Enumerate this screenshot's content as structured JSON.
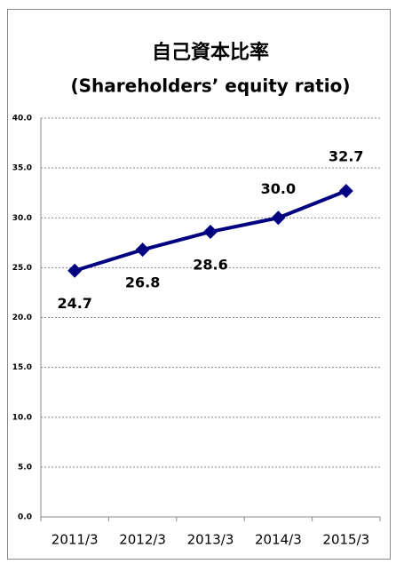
{
  "chart_data": {
    "type": "line",
    "title": "自己資本比率",
    "subtitle": "(Shareholders’ equity ratio)",
    "categories": [
      "2011/3",
      "2012/3",
      "2013/3",
      "2014/3",
      "2015/3"
    ],
    "series": [
      {
        "name": "自己資本比率",
        "color": "#000080",
        "values": [
          24.7,
          26.8,
          28.6,
          30.0,
          32.7
        ],
        "value_labels": [
          "24.7",
          "26.8",
          "28.6",
          "30.0",
          "32.7"
        ]
      }
    ],
    "ylim": [
      0,
      40
    ],
    "yticks": [
      {
        "value": 0,
        "label": "0.0"
      },
      {
        "value": 5,
        "label": "5.0"
      },
      {
        "value": 10,
        "label": "10.0"
      },
      {
        "value": 15,
        "label": "15.0"
      },
      {
        "value": 20,
        "label": "20.0"
      },
      {
        "value": 25,
        "label": "25.0"
      },
      {
        "value": 30,
        "label": "30.0"
      },
      {
        "value": 35,
        "label": "35.0"
      },
      {
        "value": 40,
        "label": "40.0"
      }
    ],
    "grid": true
  }
}
